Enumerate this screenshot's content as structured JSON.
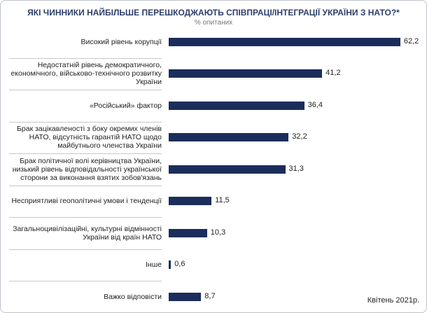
{
  "chart_data": {
    "type": "bar",
    "orientation": "horizontal",
    "title": "ЯКІ ЧИННИКИ НАЙБІЛЬШЕ ПЕРЕШКОДЖАЮТЬ СПІВПРАЦІ/ІНТЕГРАЦІЇ УКРАЇНИ З НАТО?*",
    "subtitle": "% опитаних",
    "categories": [
      "Високий рівень корупції",
      "Недостатній рівень демократичного, економічного, військово-технічного розвитку України",
      "«Російський» фактор",
      "Брак зацікавленості з боку окремих членів НАТО, відсутність гарантій НАТО щодо майбутнього членства України",
      "Брак політичної волі керівництва України, низький рівень відповідальності української сторони за виконання взятих зобов'язань",
      "Несприятливі геополітичні умови і тенденції",
      "Загальноцивілізаційні, культурні відмінності України від країн НАТО",
      "Інше",
      "Важко відповісти"
    ],
    "values": [
      62.2,
      41.2,
      36.4,
      32.2,
      31.3,
      11.5,
      10.3,
      0.6,
      8.7
    ],
    "value_labels": [
      "62,2",
      "41,2",
      "36,4",
      "32,2",
      "31,3",
      "11,5",
      "10,3",
      "0,6",
      "8,7"
    ],
    "color": "#1b2d5b",
    "note": "Квітень 2021р."
  }
}
